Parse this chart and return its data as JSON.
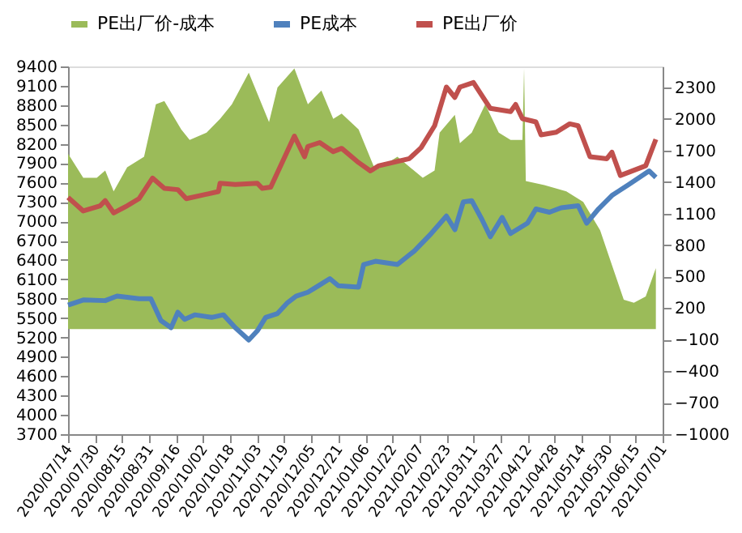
{
  "chart_data": {
    "type": "line",
    "legend": "top",
    "grid": false,
    "marker": "none",
    "line_style": "solid",
    "xlim": [
      "2020-07-14",
      "2021-07-01"
    ],
    "xticks": [
      {
        "value": "2020-07-14",
        "label": "2020/07/14"
      },
      {
        "value": "2020-07-30",
        "label": "2020/07/30"
      },
      {
        "value": "2020-08-15",
        "label": "2020/08/15"
      },
      {
        "value": "2020-08-31",
        "label": "2020/08/31"
      },
      {
        "value": "2020-09-16",
        "label": "2020/09/16"
      },
      {
        "value": "2020-10-02",
        "label": "2020/10/02"
      },
      {
        "value": "2020-10-18",
        "label": "2020/10/18"
      },
      {
        "value": "2020-11-03",
        "label": "2020/11/03"
      },
      {
        "value": "2020-11-19",
        "label": "2020/11/19"
      },
      {
        "value": "2020-12-05",
        "label": "2020/12/05"
      },
      {
        "value": "2020-12-21",
        "label": "2020/12/21"
      },
      {
        "value": "2021-01-06",
        "label": "2021/01/06"
      },
      {
        "value": "2021-01-22",
        "label": "2021/01/22"
      },
      {
        "value": "2021-02-07",
        "label": "2021/02/07"
      },
      {
        "value": "2021-02-23",
        "label": "2021/02/23"
      },
      {
        "value": "2021-03-11",
        "label": "2021/03/11"
      },
      {
        "value": "2021-03-27",
        "label": "2021/03/27"
      },
      {
        "value": "2021-04-12",
        "label": "2021/04/12"
      },
      {
        "value": "2021-04-28",
        "label": "2021/04/28"
      },
      {
        "value": "2021-05-14",
        "label": "2021/05/14"
      },
      {
        "value": "2021-05-30",
        "label": "2021/05/30"
      },
      {
        "value": "2021-06-15",
        "label": "2021/06/15"
      },
      {
        "value": "2021-07-01",
        "label": "2021/07/01"
      }
    ],
    "ylim": [
      3700,
      9400
    ],
    "yticks": [
      3700,
      4000,
      4300,
      4600,
      4900,
      5200,
      5500,
      5800,
      6100,
      6400,
      6700,
      7000,
      7300,
      7600,
      7900,
      8200,
      8500,
      8800,
      9100,
      9400
    ],
    "y2lim": [
      -1000,
      2500
    ],
    "y2ticks": [
      -1000,
      -700,
      -400,
      -100,
      200,
      500,
      800,
      1100,
      1400,
      1700,
      2000,
      2300
    ],
    "series": [
      {
        "name": "PE出厂价-成本",
        "type": "area",
        "axis": "y2",
        "color": "#9bbb59",
        "x": [
          "2020-07-14",
          "2020-07-23",
          "2020-07-31",
          "2020-08-05",
          "2020-08-10",
          "2020-08-18",
          "2020-08-28",
          "2020-09-04",
          "2020-09-09",
          "2020-09-19",
          "2020-09-24",
          "2020-10-04",
          "2020-10-12",
          "2020-10-19",
          "2020-10-29",
          "2020-11-10",
          "2020-11-15",
          "2020-11-25",
          "2020-12-03",
          "2020-12-11",
          "2020-12-18",
          "2020-12-23",
          "2021-01-02",
          "2021-01-12",
          "2021-01-25",
          "2021-02-09",
          "2021-02-16",
          "2021-02-19",
          "2021-02-28",
          "2021-03-03",
          "2021-03-10",
          "2021-03-18",
          "2021-03-26",
          "2021-04-02",
          "2021-04-09",
          "2021-04-10",
          "2021-04-11",
          "2021-04-22",
          "2021-05-05",
          "2021-05-15",
          "2021-05-25",
          "2021-06-01",
          "2021-06-08",
          "2021-06-14",
          "2021-06-21",
          "2021-06-27"
        ],
        "values": [
          1670,
          1440,
          1440,
          1510,
          1310,
          1540,
          1640,
          2140,
          2170,
          1900,
          1800,
          1870,
          2000,
          2140,
          2440,
          1970,
          2300,
          2480,
          2140,
          2270,
          2000,
          2050,
          1900,
          1510,
          1640,
          1440,
          1510,
          1870,
          2040,
          1770,
          1870,
          2140,
          1870,
          1800,
          1800,
          2480,
          1410,
          1370,
          1310,
          1210,
          940,
          610,
          280,
          250,
          310,
          580
        ]
      },
      {
        "name": "PE成本",
        "color": "#4f81bd",
        "x": [
          "2020-07-14",
          "2020-07-23",
          "2020-08-05",
          "2020-08-12",
          "2020-08-25",
          "2020-09-01",
          "2020-09-07",
          "2020-09-13",
          "2020-09-17",
          "2020-09-21",
          "2020-09-27",
          "2020-10-07",
          "2020-10-14",
          "2020-10-21",
          "2020-10-29",
          "2020-11-03",
          "2020-11-08",
          "2020-11-15",
          "2020-11-21",
          "2020-11-26",
          "2020-12-03",
          "2020-12-08",
          "2020-12-16",
          "2020-12-21",
          "2021-01-02",
          "2021-01-05",
          "2021-01-12",
          "2021-01-25",
          "2021-02-04",
          "2021-02-14",
          "2021-02-23",
          "2021-02-28",
          "2021-03-05",
          "2021-03-10",
          "2021-03-16",
          "2021-03-21",
          "2021-03-28",
          "2021-04-02",
          "2021-04-12",
          "2021-04-17",
          "2021-04-25",
          "2021-05-02",
          "2021-05-12",
          "2021-05-17",
          "2021-05-24",
          "2021-06-01",
          "2021-06-11",
          "2021-06-23",
          "2021-06-27"
        ],
        "values": [
          5700,
          5780,
          5770,
          5840,
          5800,
          5800,
          5460,
          5350,
          5590,
          5480,
          5550,
          5510,
          5550,
          5350,
          5160,
          5300,
          5510,
          5570,
          5740,
          5840,
          5900,
          5980,
          6110,
          6000,
          5980,
          6330,
          6380,
          6330,
          6540,
          6810,
          7080,
          6870,
          7300,
          7320,
          7030,
          6760,
          7060,
          6810,
          6970,
          7190,
          7140,
          7210,
          7240,
          6970,
          7190,
          7400,
          7570,
          7780,
          7680
        ]
      },
      {
        "name": "PE出厂价",
        "color": "#c0504d",
        "x": [
          "2020-07-14",
          "2020-07-23",
          "2020-08-02",
          "2020-08-05",
          "2020-08-10",
          "2020-08-18",
          "2020-08-25",
          "2020-09-02",
          "2020-09-09",
          "2020-09-17",
          "2020-09-22",
          "2020-10-11",
          "2020-10-12",
          "2020-10-21",
          "2020-11-03",
          "2020-11-06",
          "2020-11-11",
          "2020-11-25",
          "2020-12-01",
          "2020-12-03",
          "2020-12-10",
          "2020-12-18",
          "2020-12-23",
          "2021-01-02",
          "2021-01-09",
          "2021-01-14",
          "2021-02-01",
          "2021-02-08",
          "2021-02-16",
          "2021-02-23",
          "2021-02-28",
          "2021-03-03",
          "2021-03-11",
          "2021-03-21",
          "2021-04-02",
          "2021-04-05",
          "2021-04-09",
          "2021-04-17",
          "2021-04-20",
          "2021-04-29",
          "2021-05-07",
          "2021-05-12",
          "2021-05-19",
          "2021-05-29",
          "2021-06-01",
          "2021-06-06",
          "2021-06-21",
          "2021-06-27"
        ],
        "values": [
          7370,
          7160,
          7240,
          7320,
          7130,
          7240,
          7350,
          7670,
          7510,
          7490,
          7350,
          7460,
          7590,
          7570,
          7590,
          7510,
          7530,
          8320,
          8000,
          8160,
          8220,
          8080,
          8130,
          7910,
          7780,
          7860,
          7970,
          8140,
          8480,
          9080,
          8920,
          9080,
          9150,
          8750,
          8700,
          8810,
          8590,
          8540,
          8340,
          8380,
          8510,
          8480,
          8000,
          7970,
          8070,
          7710,
          7860,
          8270
        ]
      }
    ]
  }
}
